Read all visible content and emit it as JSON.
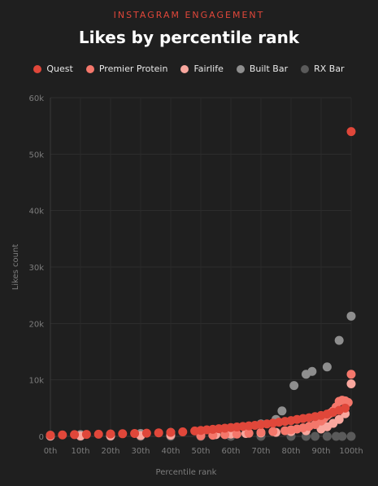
{
  "header": {
    "eyebrow": "INSTAGRAM ENGAGEMENT",
    "title": "Likes by percentile rank"
  },
  "chart_data": {
    "type": "scatter",
    "title": "Likes by percentile rank",
    "subtitle": "INSTAGRAM ENGAGEMENT",
    "xlabel": "Percentile rank",
    "ylabel": "Likes count",
    "xlim": [
      0,
      100
    ],
    "ylim": [
      0,
      60000
    ],
    "x_ticks": [
      "0th",
      "10th",
      "20th",
      "30th",
      "40th",
      "50th",
      "60th",
      "70th",
      "80th",
      "90th",
      "100th"
    ],
    "y_ticks": [
      "0",
      "10k",
      "20k",
      "30k",
      "40k",
      "50k",
      "60k"
    ],
    "grid": true,
    "legend_position": "top-center",
    "series": [
      {
        "name": "Quest",
        "color": "#e0473a",
        "x": [
          0,
          4,
          8,
          12,
          16,
          20,
          24,
          28,
          32,
          36,
          40,
          44,
          48,
          50,
          52,
          54,
          56,
          58,
          60,
          62,
          64,
          66,
          68,
          70,
          72,
          74,
          76,
          78,
          80,
          82,
          84,
          86,
          88,
          90,
          92,
          94,
          96,
          98,
          100
        ],
        "y": [
          200,
          250,
          300,
          350,
          380,
          420,
          460,
          500,
          560,
          620,
          700,
          800,
          950,
          1050,
          1150,
          1250,
          1350,
          1450,
          1550,
          1650,
          1750,
          1850,
          1950,
          2100,
          2200,
          2350,
          2500,
          2650,
          2800,
          3000,
          3150,
          3300,
          3500,
          3700,
          3950,
          4250,
          4600,
          5000,
          54000
        ]
      },
      {
        "name": "Premier Protein",
        "color": "#f4776b",
        "x": [
          50,
          54,
          58,
          62,
          66,
          70,
          74,
          78,
          80,
          82,
          84,
          86,
          88,
          90,
          91,
          92,
          93,
          94,
          95,
          96,
          97,
          98,
          99,
          100
        ],
        "y": [
          100,
          200,
          300,
          400,
          550,
          700,
          850,
          1000,
          1150,
          1300,
          1500,
          1750,
          2100,
          2700,
          3200,
          3700,
          4100,
          4500,
          5200,
          6200,
          6400,
          6300,
          6000,
          11000
        ]
      },
      {
        "name": "Fairlife",
        "color": "#f9a79e",
        "x": [
          0,
          10,
          20,
          30,
          40,
          50,
          55,
          60,
          65,
          70,
          75,
          80,
          85,
          90,
          92,
          94,
          96,
          98,
          100
        ],
        "y": [
          50,
          80,
          100,
          150,
          200,
          250,
          300,
          400,
          500,
          600,
          700,
          850,
          1000,
          1300,
          1700,
          2300,
          3000,
          4000,
          9300
        ]
      },
      {
        "name": "Built Bar",
        "color": "#8e8e8e",
        "x": [
          0,
          10,
          20,
          30,
          40,
          50,
          60,
          70,
          75,
          77,
          81,
          85,
          87,
          92,
          96,
          100
        ],
        "y": [
          200,
          300,
          400,
          500,
          700,
          900,
          1500,
          2200,
          3000,
          4500,
          9000,
          11000,
          11500,
          12300,
          17000,
          21300
        ]
      },
      {
        "name": "RX Bar",
        "color": "#5a5a5a",
        "x": [
          0,
          10,
          20,
          30,
          40,
          50,
          60,
          70,
          80,
          85,
          88,
          92,
          95,
          97,
          100
        ],
        "y": [
          0,
          0,
          0,
          0,
          0,
          0,
          0,
          0,
          0,
          0,
          0,
          0,
          0,
          0,
          0
        ]
      }
    ]
  }
}
